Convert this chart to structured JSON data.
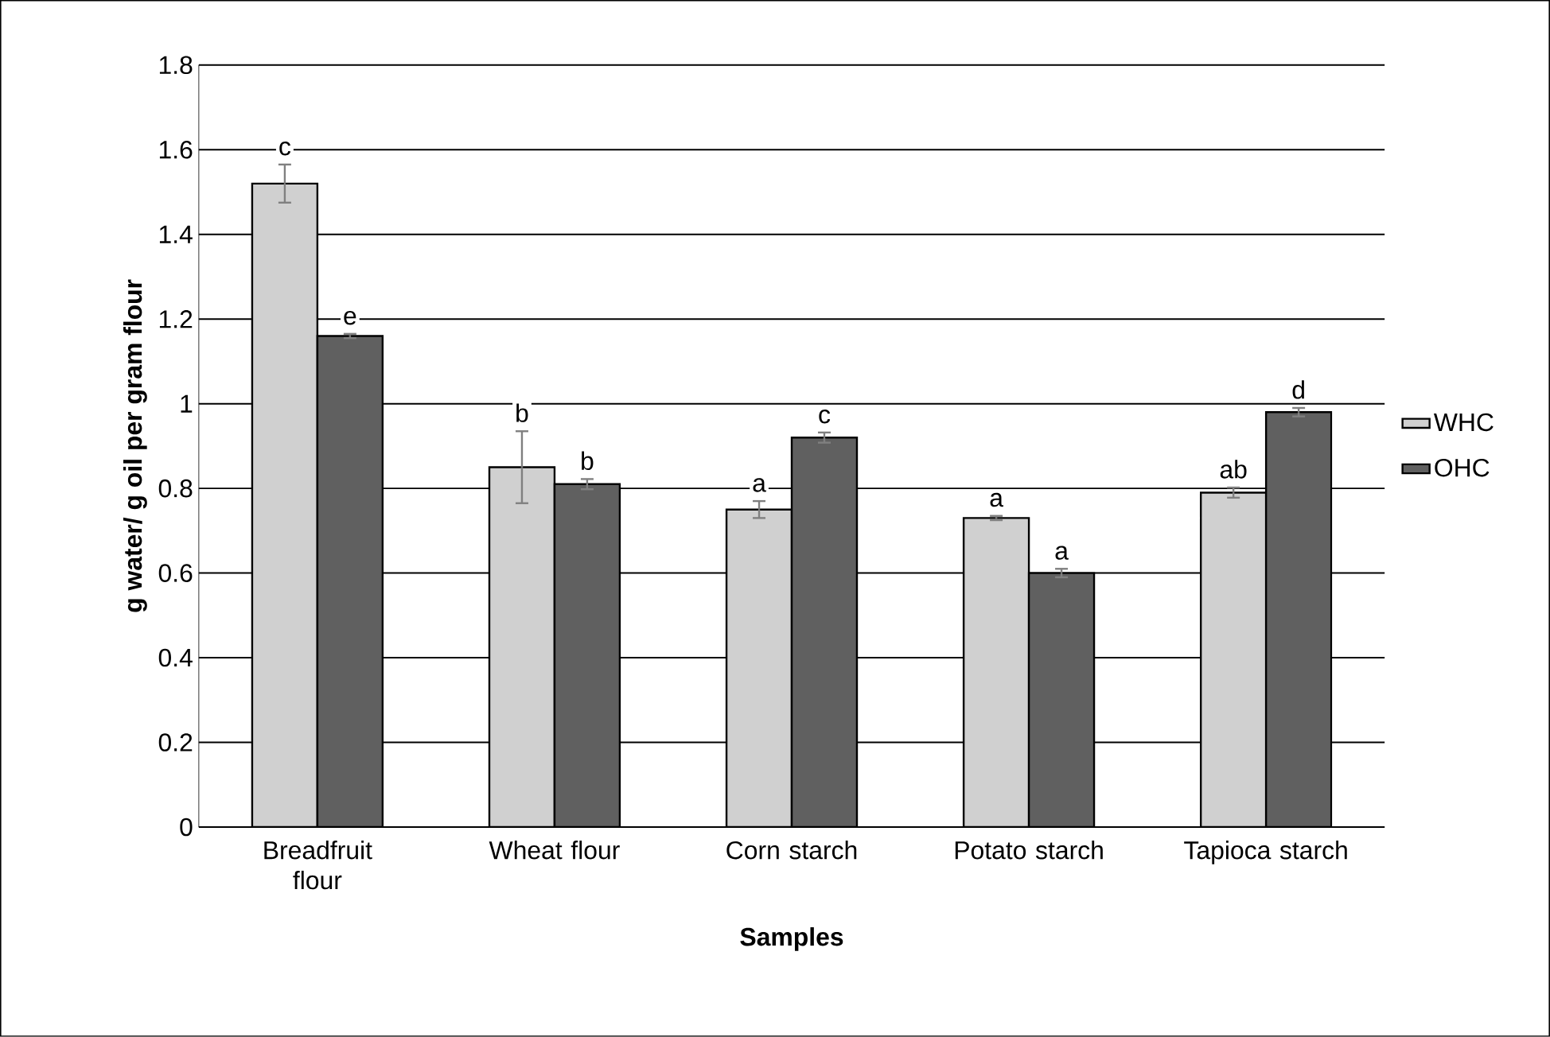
{
  "chart_data": {
    "type": "bar",
    "xlabel": "Samples",
    "ylabel": "g water/ g oil per gram flour",
    "categories": [
      "Breadfruit flour",
      "Wheat flour",
      "Corn starch",
      "Potato starch",
      "Tapioca starch"
    ],
    "series": [
      {
        "name": "WHC",
        "color": "#d0d0d0",
        "values": [
          1.52,
          0.85,
          0.75,
          0.73,
          0.79
        ],
        "errors": [
          0.045,
          0.085,
          0.02,
          0.005,
          0.012
        ]
      },
      {
        "name": "OHC",
        "color": "#606060",
        "values": [
          1.16,
          0.81,
          0.92,
          0.6,
          0.98
        ],
        "errors": [
          0.005,
          0.012,
          0.012,
          0.01,
          0.01
        ]
      }
    ],
    "annotations": [
      "c",
      "e",
      "b",
      "b",
      "a",
      "c",
      "a",
      "a",
      "ab",
      "d"
    ],
    "ylim": [
      0,
      1.8
    ],
    "yticks": [
      0,
      0.2,
      0.4,
      0.6,
      0.8,
      1,
      1.2,
      1.4,
      1.6,
      1.8
    ],
    "grid": "y",
    "legend": "right"
  }
}
